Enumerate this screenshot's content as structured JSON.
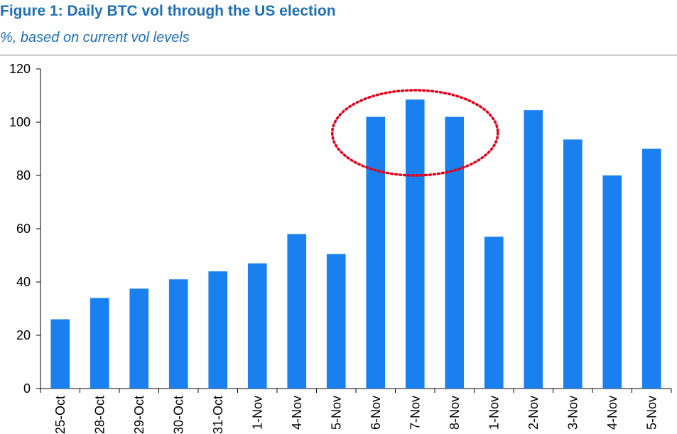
{
  "header": {
    "title": "Figure 1: Daily BTC vol through the US election",
    "subtitle": "%, based on current vol levels"
  },
  "chart_data": {
    "type": "bar",
    "title": "Figure 1: Daily BTC vol through the US election",
    "subtitle": "%, based on current vol levels",
    "categories": [
      "25-Oct",
      "28-Oct",
      "29-Oct",
      "30-Oct",
      "31-Oct",
      "1-Nov",
      "4-Nov",
      "5-Nov",
      "6-Nov",
      "7-Nov",
      "8-Nov",
      "1-Nov",
      "2-Nov",
      "3-Nov",
      "4-Nov",
      "5-Nov"
    ],
    "values": [
      26,
      34,
      37.5,
      41,
      44,
      47,
      58,
      50.5,
      102,
      108.5,
      102,
      57,
      104.5,
      93.5,
      80,
      90
    ],
    "ylim": [
      0,
      120
    ],
    "yticks": [
      0,
      20,
      40,
      60,
      80,
      100,
      120
    ],
    "grid": false,
    "legend": "none",
    "bar_color": "#1a80f0",
    "highlight": {
      "categories_index": [
        8,
        9,
        10
      ],
      "style": "red-dotted-ellipse",
      "color": "#e0001b"
    }
  }
}
